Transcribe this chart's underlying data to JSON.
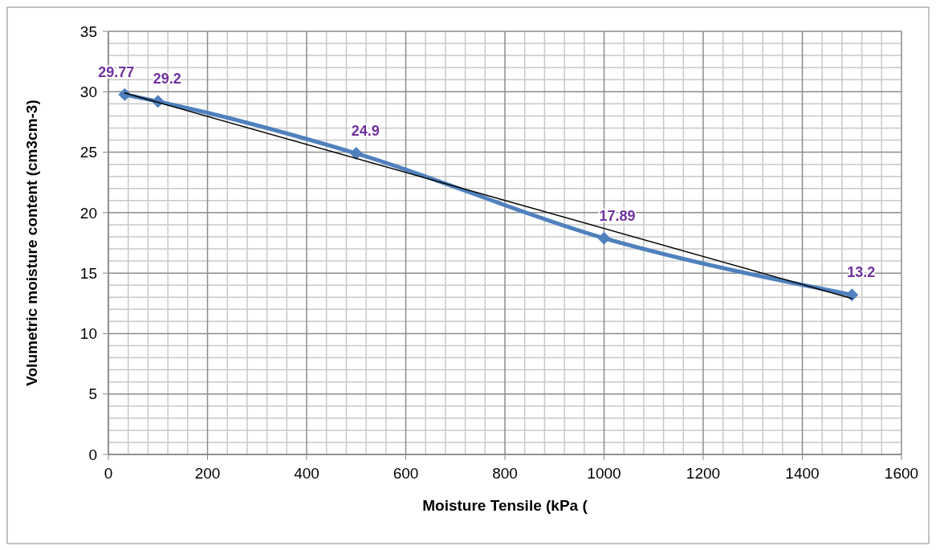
{
  "chart_data": {
    "type": "line",
    "xlabel": "Moisture Tensile (kPa (",
    "ylabel": "Volumetric moisture content (cm3cm-3)",
    "x": [
      33,
      100,
      500,
      1000,
      1500
    ],
    "series": [
      {
        "color": "#4f81bd",
        "values": [
          29.77,
          29.2,
          24.9,
          17.89,
          13.2
        ],
        "marker": "diamond",
        "data_labels": true
      },
      {
        "color": "#000000",
        "x": [
          33,
          1500
        ],
        "values": [
          29.9,
          12.9
        ],
        "marker": "none"
      }
    ],
    "xlim": [
      0,
      1600
    ],
    "xticks": [
      0,
      200,
      400,
      600,
      800,
      1000,
      1200,
      1400,
      1600
    ],
    "ylim": [
      0,
      35
    ],
    "yticks": [
      0,
      5,
      10,
      15,
      20,
      25,
      30,
      35
    ],
    "grid": true,
    "line_style": "solid"
  }
}
